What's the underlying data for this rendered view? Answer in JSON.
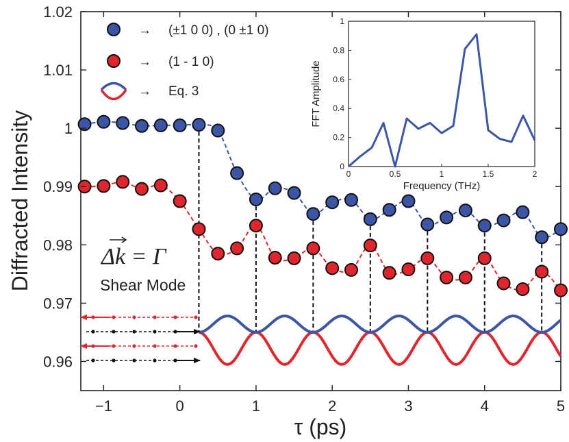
{
  "chart_data": {
    "type": "scatter",
    "xlabel": "τ (ps)",
    "ylabel": "Diffracted Intensity",
    "xlim": [
      -1.3,
      5
    ],
    "ylim": [
      0.955,
      1.02
    ],
    "xticks": [
      "−1",
      "0",
      "1",
      "2",
      "3",
      "4",
      "5"
    ],
    "xtick_values": [
      -1,
      0,
      1,
      2,
      3,
      4,
      5
    ],
    "yticks": [
      "0.96",
      "0.97",
      "0.98",
      "0.99",
      "1",
      "1.01",
      "1.02"
    ],
    "ytick_values": [
      0.96,
      0.97,
      0.98,
      0.99,
      1.0,
      1.01,
      1.02
    ],
    "series": [
      {
        "name": "(±1 0 0) , (0 ±1 0)",
        "color": "#3b56a6",
        "x": [
          -1.25,
          -1.0,
          -0.75,
          -0.5,
          -0.25,
          0.0,
          0.25,
          0.5,
          0.75,
          1.0,
          1.25,
          1.5,
          1.75,
          2.0,
          2.25,
          2.5,
          2.75,
          3.0,
          3.25,
          3.5,
          3.75,
          4.0,
          4.25,
          4.5,
          4.75,
          5.0
        ],
        "y": [
          1.0007,
          1.0011,
          1.0009,
          1.0004,
          1.0005,
          1.0005,
          1.0006,
          0.9996,
          0.9923,
          0.9878,
          0.9897,
          0.9889,
          0.9853,
          0.9873,
          0.9877,
          0.9844,
          0.986,
          0.9875,
          0.9835,
          0.9847,
          0.9859,
          0.9833,
          0.9842,
          0.9856,
          0.9813,
          0.9827
        ]
      },
      {
        "name": "(1 - 1 0)",
        "color": "#e0262c",
        "x": [
          -1.25,
          -1.0,
          -0.75,
          -0.5,
          -0.25,
          0.0,
          0.25,
          0.5,
          0.75,
          1.0,
          1.25,
          1.5,
          1.75,
          2.0,
          2.25,
          2.5,
          2.75,
          3.0,
          3.25,
          3.5,
          3.75,
          4.0,
          4.25,
          4.5,
          4.75,
          5.0
        ],
        "y": [
          0.99,
          0.9901,
          0.9908,
          0.9896,
          0.9902,
          0.9875,
          0.9827,
          0.9785,
          0.9794,
          0.9833,
          0.9778,
          0.9777,
          0.9794,
          0.976,
          0.9757,
          0.9799,
          0.9752,
          0.9758,
          0.9777,
          0.9744,
          0.9744,
          0.9777,
          0.9734,
          0.9724,
          0.9754,
          0.9722
        ]
      }
    ],
    "legend": [
      {
        "label": "(±1 0 0) , (0 ±1 0)",
        "arrow": "→"
      },
      {
        "label": "(1 - 1 0)",
        "arrow": "→"
      },
      {
        "label": "Eq. 3",
        "arrow": "→"
      }
    ],
    "dashed_lines_x": [
      0.25,
      1.0,
      1.75,
      2.5,
      3.25,
      4.0,
      4.75
    ],
    "annotation_math": "Δk = Γ",
    "annotation_text": "Shear Mode",
    "inset": {
      "type": "line",
      "xlabel": "Frequency (THz)",
      "ylabel": "FFT Amplitude",
      "xlim": [
        0,
        2
      ],
      "ylim": [
        0,
        1
      ],
      "xticks": [
        "0",
        "0.5",
        "1",
        "1.5",
        "2"
      ],
      "xtick_values": [
        0,
        0.5,
        1,
        1.5,
        2
      ],
      "yticks": [
        "0",
        "0.2",
        "0.4",
        "0.6",
        "0.8",
        "1"
      ],
      "ytick_values": [
        0,
        0.2,
        0.4,
        0.6,
        0.8,
        1
      ],
      "color": "#3b56a6",
      "x": [
        0,
        0.125,
        0.25,
        0.375,
        0.5,
        0.625,
        0.75,
        0.875,
        1.0,
        1.125,
        1.25,
        1.375,
        1.5,
        1.625,
        1.75,
        1.875,
        2.0
      ],
      "y": [
        0.0,
        0.07,
        0.13,
        0.3,
        0.0,
        0.33,
        0.26,
        0.3,
        0.23,
        0.28,
        0.81,
        0.91,
        0.25,
        0.19,
        0.17,
        0.35,
        0.18
      ]
    }
  }
}
